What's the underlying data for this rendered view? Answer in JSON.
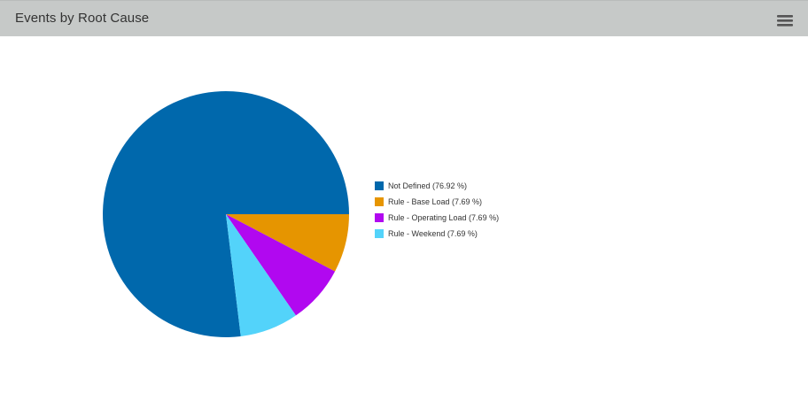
{
  "header": {
    "title": "Events by Root Cause",
    "menu_icon": "hamburger-menu-icon"
  },
  "chart_data": {
    "type": "pie",
    "title": "Events by Root Cause",
    "legend_position": "right",
    "slices": [
      {
        "label": "Not Defined",
        "percent": 76.92,
        "legend_text": "Not Defined (76.92 %)",
        "color": "#0068ac"
      },
      {
        "label": "Rule - Base Load",
        "percent": 7.69,
        "legend_text": "Rule - Base Load (7.69 %)",
        "color": "#e69500"
      },
      {
        "label": "Rule - Operating Load",
        "percent": 7.69,
        "legend_text": "Rule - Operating Load (7.69 %)",
        "color": "#b108f0"
      },
      {
        "label": "Rule - Weekend",
        "percent": 7.69,
        "legend_text": "Rule - Weekend (7.69 %)",
        "color": "#53d3fa"
      }
    ]
  }
}
